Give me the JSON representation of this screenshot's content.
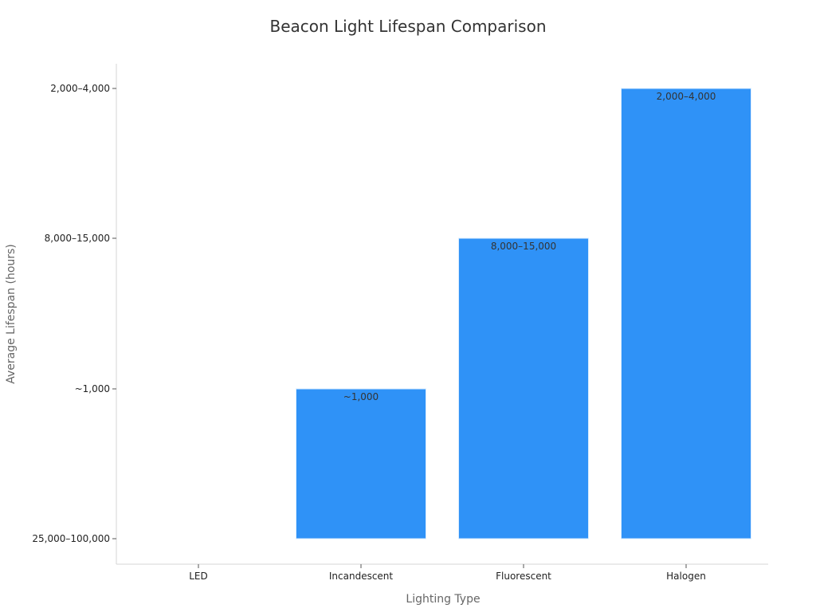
{
  "chart_data": {
    "type": "bar",
    "title": "Beacon Light Lifespan Comparison",
    "xlabel": "Lighting Type",
    "ylabel": "Average Lifespan (hours)",
    "categories": [
      "LED",
      "Incandescent",
      "Fluorescent",
      "Halogen"
    ],
    "y_ticks": [
      "25,000–100,000",
      "~1,000",
      "8,000–15,000",
      "2,000–4,000"
    ],
    "values": [
      "25,000–100,000",
      "~1,000",
      "8,000–15,000",
      "2,000–4,000"
    ],
    "data_labels": [
      "",
      "~1,000",
      "8,000–15,000",
      "2,000–4,000"
    ],
    "grid": false,
    "legend": "none",
    "colors": {
      "bar": "#2f92f7",
      "bar_edge": "#d9ecff"
    }
  }
}
